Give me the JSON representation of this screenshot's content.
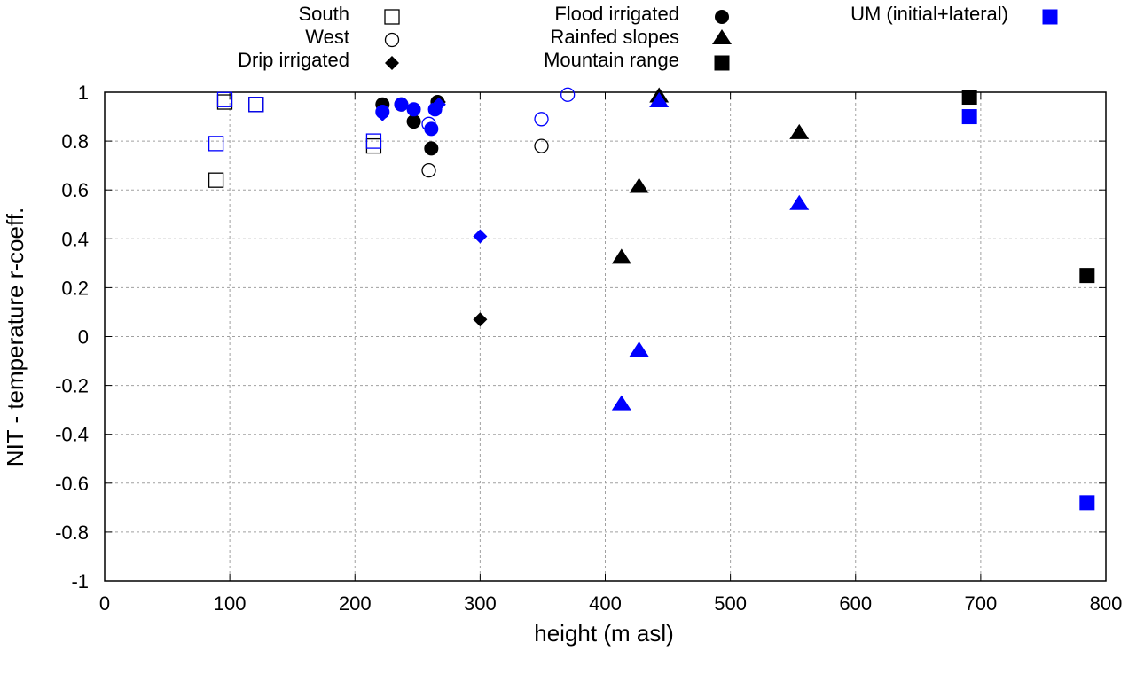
{
  "chart_data": {
    "type": "scatter",
    "title": "",
    "xlabel": "height (m asl)",
    "ylabel": "NIT - temperature r-coeff.",
    "xlim": [
      0,
      800
    ],
    "ylim": [
      -1,
      1
    ],
    "xticks": [
      0,
      100,
      200,
      300,
      400,
      500,
      600,
      700,
      800
    ],
    "yticks": [
      -1,
      -0.8,
      -0.6,
      -0.4,
      -0.2,
      0,
      0.2,
      0.4,
      0.6,
      0.8,
      1
    ],
    "xtick_labels": [
      "0",
      "100",
      "200",
      "300",
      "400",
      "500",
      "600",
      "700",
      "800"
    ],
    "ytick_labels": [
      "-1",
      "-0.8",
      "-0.6",
      "-0.4",
      "-0.2",
      "0",
      "0.2",
      "0.4",
      "0.6",
      "0.8",
      "1"
    ],
    "grid": true,
    "legend_position": "top-outside",
    "colors": {
      "default": "#000000",
      "um": "#0000ff",
      "grid": "#a0a0a0"
    },
    "legend": [
      {
        "label": "South",
        "marker": "open-square",
        "color": "#000000"
      },
      {
        "label": "West",
        "marker": "open-circle",
        "color": "#000000"
      },
      {
        "label": "Drip irrigated",
        "marker": "filled-diamond",
        "color": "#000000"
      },
      {
        "label": "Flood irrigated",
        "marker": "filled-circle",
        "color": "#000000"
      },
      {
        "label": "Rainfed slopes",
        "marker": "filled-triangle",
        "color": "#000000"
      },
      {
        "label": "Mountain range",
        "marker": "filled-square",
        "color": "#000000"
      },
      {
        "label": "UM (initial+lateral)",
        "marker": "filled-square",
        "color": "#0000ff"
      }
    ],
    "series": [
      {
        "name": "South",
        "marker": "open-square",
        "color": "#000000",
        "x": [
          89,
          96,
          121,
          215
        ],
        "y": [
          0.64,
          0.96,
          0.95,
          0.78
        ]
      },
      {
        "name": "South (UM)",
        "marker": "open-square",
        "color": "#0000ff",
        "x": [
          89,
          96,
          121,
          215
        ],
        "y": [
          0.79,
          0.97,
          0.95,
          0.8
        ]
      },
      {
        "name": "West",
        "marker": "open-circle",
        "color": "#000000",
        "x": [
          259,
          349
        ],
        "y": [
          0.68,
          0.78
        ]
      },
      {
        "name": "West (UM)",
        "marker": "open-circle",
        "color": "#0000ff",
        "x": [
          259,
          349,
          370
        ],
        "y": [
          0.87,
          0.89,
          0.99
        ]
      },
      {
        "name": "Flood irrigated",
        "marker": "filled-circle",
        "color": "#000000",
        "x": [
          222,
          237,
          247,
          261,
          266
        ],
        "y": [
          0.95,
          0.95,
          0.88,
          0.77,
          0.96
        ]
      },
      {
        "name": "Flood irrigated (UM)",
        "marker": "filled-circle",
        "color": "#0000ff",
        "x": [
          222,
          237,
          247,
          261,
          264
        ],
        "y": [
          0.92,
          0.95,
          0.93,
          0.85,
          0.93
        ]
      },
      {
        "name": "Drip irrigated",
        "marker": "filled-diamond",
        "color": "#000000",
        "x": [
          267,
          300
        ],
        "y": [
          0.96,
          0.07
        ]
      },
      {
        "name": "Drip irrigated (UM)",
        "marker": "filled-diamond",
        "color": "#0000ff",
        "x": [
          222,
          267,
          300
        ],
        "y": [
          0.91,
          0.95,
          0.41
        ]
      },
      {
        "name": "Rainfed slopes",
        "marker": "filled-triangle",
        "color": "#000000",
        "x": [
          413,
          427,
          443,
          555
        ],
        "y": [
          0.32,
          0.61,
          0.98,
          0.83
        ]
      },
      {
        "name": "Rainfed slopes (UM)",
        "marker": "filled-triangle",
        "color": "#0000ff",
        "x": [
          413,
          427,
          443,
          555
        ],
        "y": [
          -0.28,
          -0.06,
          0.96,
          0.54
        ]
      },
      {
        "name": "Mountain range",
        "marker": "filled-square",
        "color": "#000000",
        "x": [
          691,
          785
        ],
        "y": [
          0.98,
          0.25
        ]
      },
      {
        "name": "Mountain range (UM)",
        "marker": "filled-square",
        "color": "#0000ff",
        "x": [
          691,
          785
        ],
        "y": [
          0.9,
          -0.68
        ]
      }
    ]
  }
}
